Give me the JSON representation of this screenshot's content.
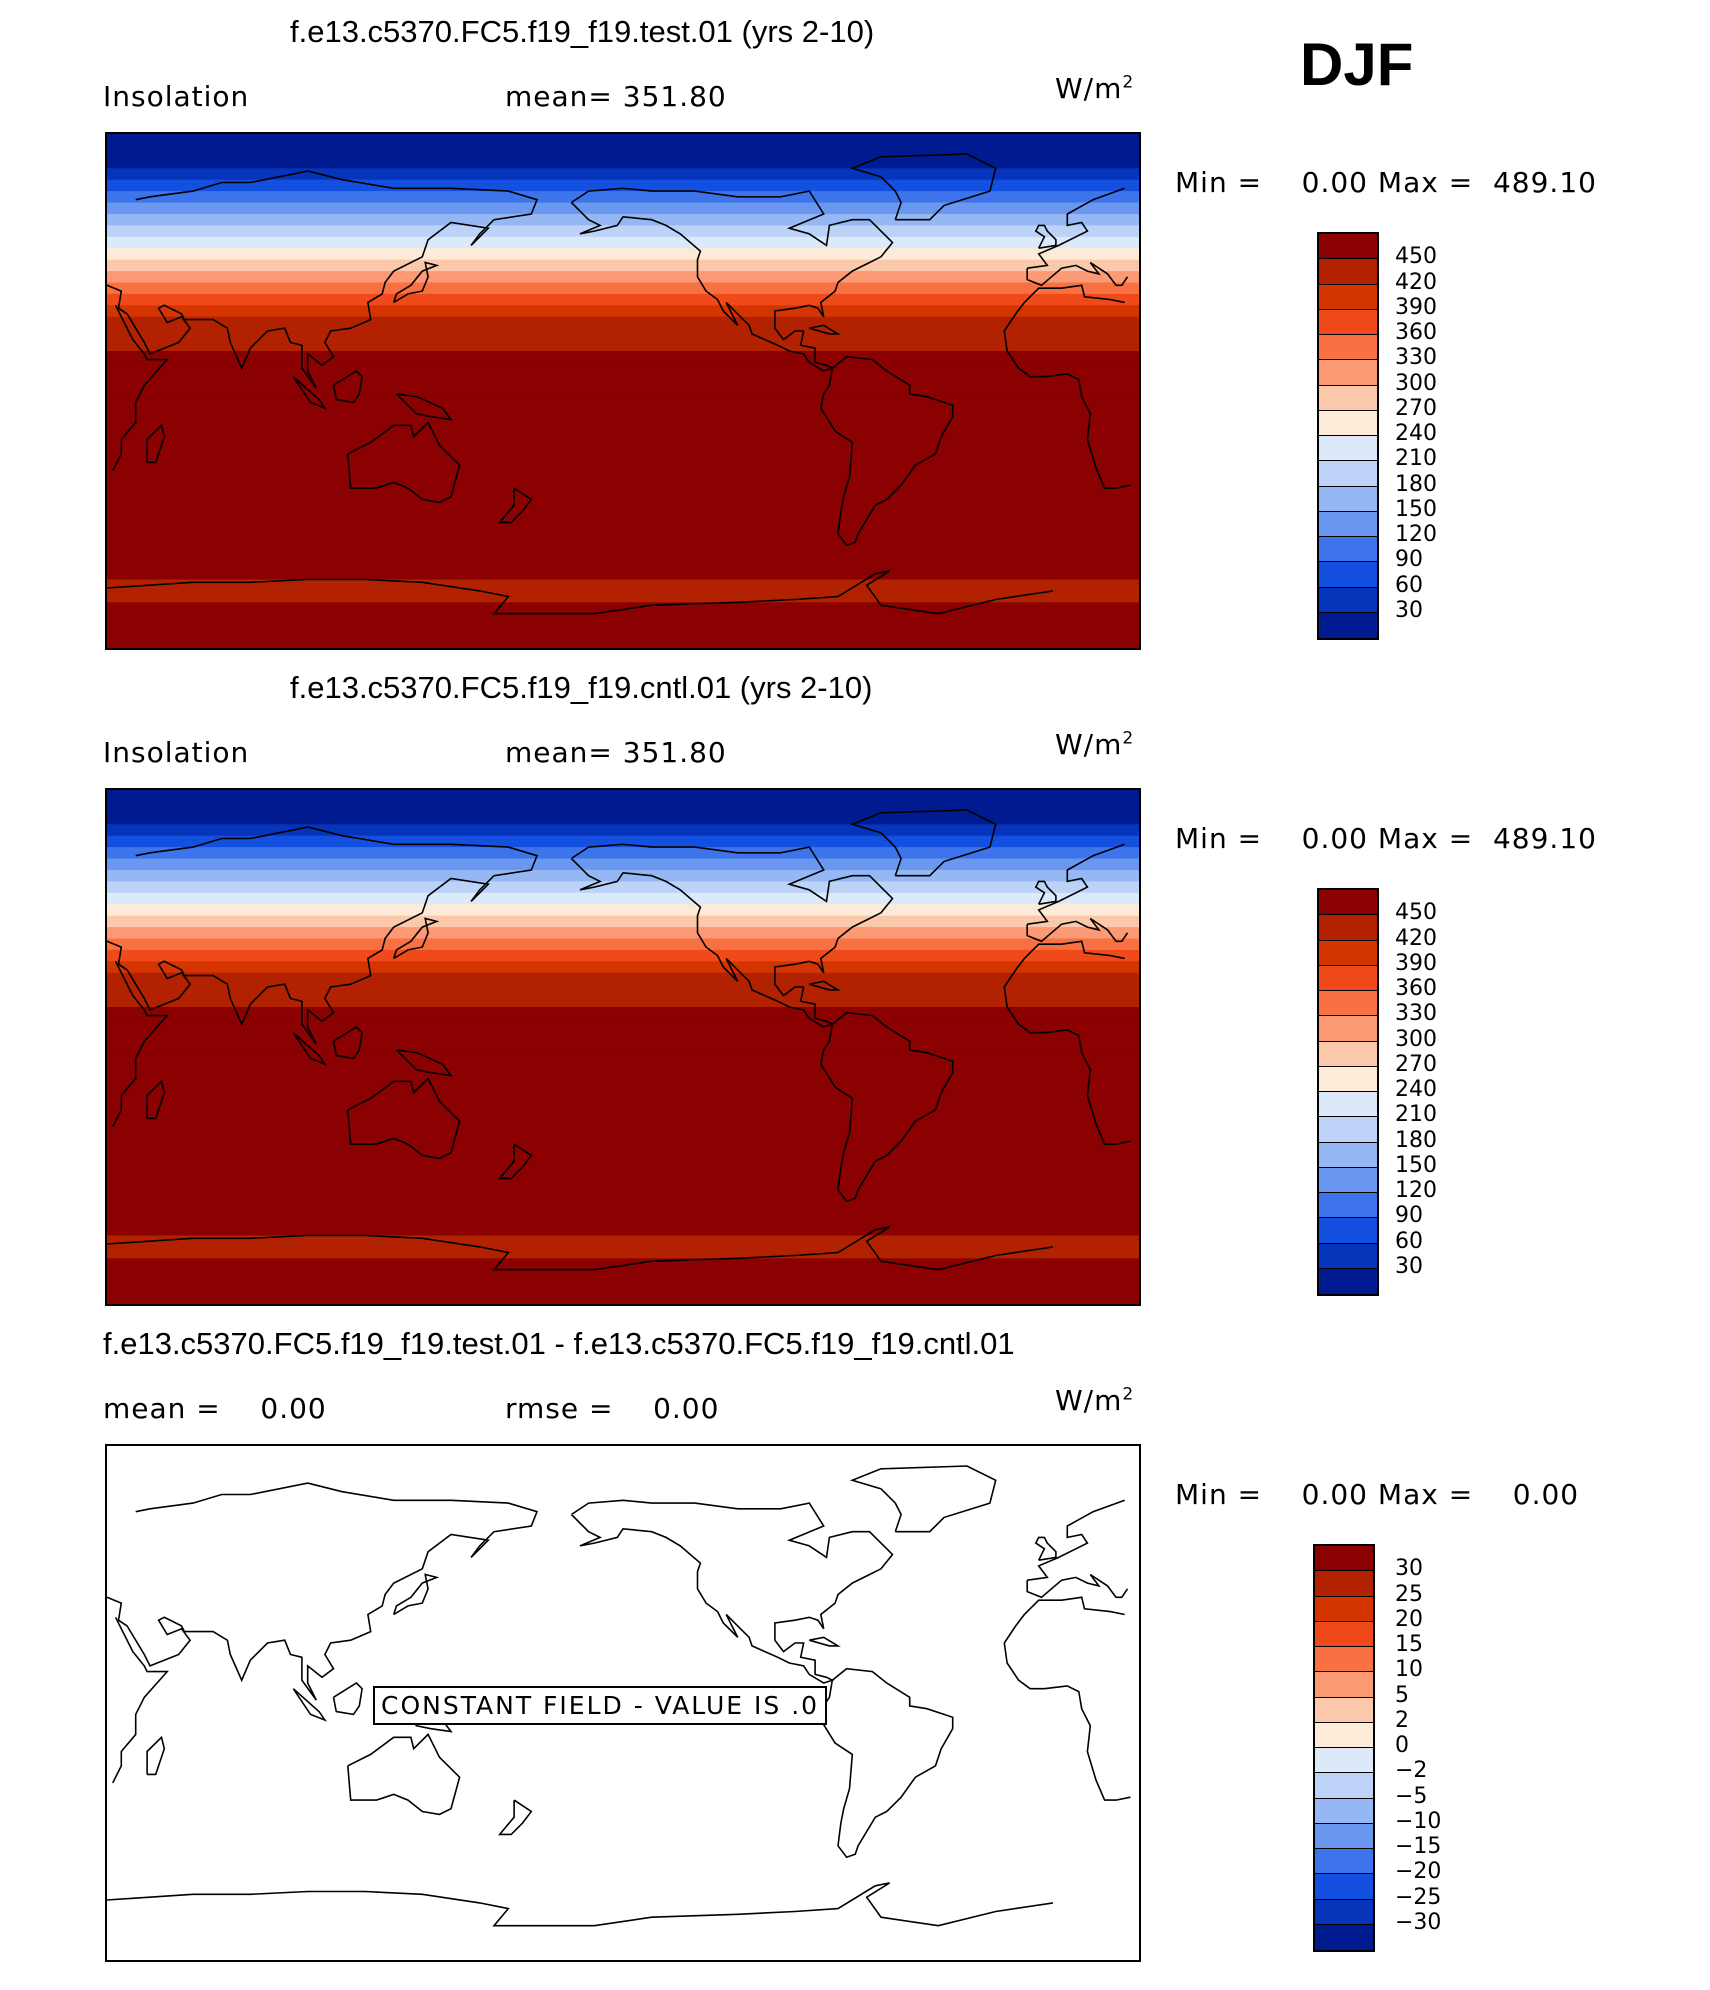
{
  "season": "DJF",
  "units_base": "W/m",
  "units_exp": "2",
  "panels": [
    {
      "title": "f.e13.c5370.FC5.f19_f19.test.01 (yrs 2-10)",
      "left_label": "Insolation",
      "mid_label": "mean= 351.80",
      "stats": {
        "min_label": "Min =",
        "min": "0.00",
        "max_label": "Max =",
        "max": "489.10"
      }
    },
    {
      "title": "f.e13.c5370.FC5.f19_f19.cntl.01 (yrs 2-10)",
      "left_label": "Insolation",
      "mid_label": "mean= 351.80",
      "stats": {
        "min_label": "Min =",
        "min": "0.00",
        "max_label": "Max =",
        "max": "489.10"
      }
    },
    {
      "title": "f.e13.c5370.FC5.f19_f19.test.01 - f.e13.c5370.FC5.f19_f19.cntl.01",
      "left_label": "mean =",
      "left_value": "0.00",
      "mid_label": "rmse =",
      "mid_value": "0.00",
      "stats": {
        "min_label": "Min =",
        "min": "0.00",
        "max_label": "Max =",
        "max": "0.00"
      },
      "constant_field_text": "CONSTANT FIELD - VALUE IS .0"
    }
  ],
  "colorbar_main": {
    "labels": [
      "450",
      "420",
      "390",
      "360",
      "330",
      "300",
      "270",
      "240",
      "210",
      "180",
      "150",
      "120",
      "90",
      "60",
      "30"
    ],
    "colors": [
      "#8b0000",
      "#b22200",
      "#d33400",
      "#f04a1a",
      "#f77142",
      "#fb9a75",
      "#fcc8aa",
      "#fdebd8",
      "#dbe9f9",
      "#bcd3f7",
      "#95b8f5",
      "#6a98f1",
      "#3d74ec",
      "#1450e0",
      "#0634bb",
      "#001a8f"
    ]
  },
  "colorbar_diff": {
    "labels": [
      "30",
      "25",
      "20",
      "15",
      "10",
      "5",
      "2",
      "0",
      "−2",
      "−5",
      "−10",
      "−15",
      "−20",
      "−25",
      "−30"
    ],
    "colors": [
      "#8b0000",
      "#b22200",
      "#d33400",
      "#f04a1a",
      "#f77142",
      "#fb9a75",
      "#fcc8aa",
      "#fdebd8",
      "#dbe9f9",
      "#bcd3f7",
      "#95b8f5",
      "#6a98f1",
      "#3d74ec",
      "#1450e0",
      "#0634bb",
      "#001a8f"
    ]
  },
  "map_bands": {
    "lat_edges": [
      90,
      78,
      74,
      70,
      66,
      62,
      58,
      54,
      50,
      46,
      42,
      38,
      34,
      30,
      26,
      22,
      18,
      14,
      10,
      6,
      2,
      -2,
      -66,
      -74,
      -82,
      -90
    ],
    "values": [
      0,
      30,
      60,
      90,
      120,
      150,
      180,
      210,
      240,
      270,
      300,
      330,
      360,
      390,
      420,
      420,
      440,
      460,
      460,
      470,
      480,
      489,
      420,
      460,
      480
    ]
  }
}
